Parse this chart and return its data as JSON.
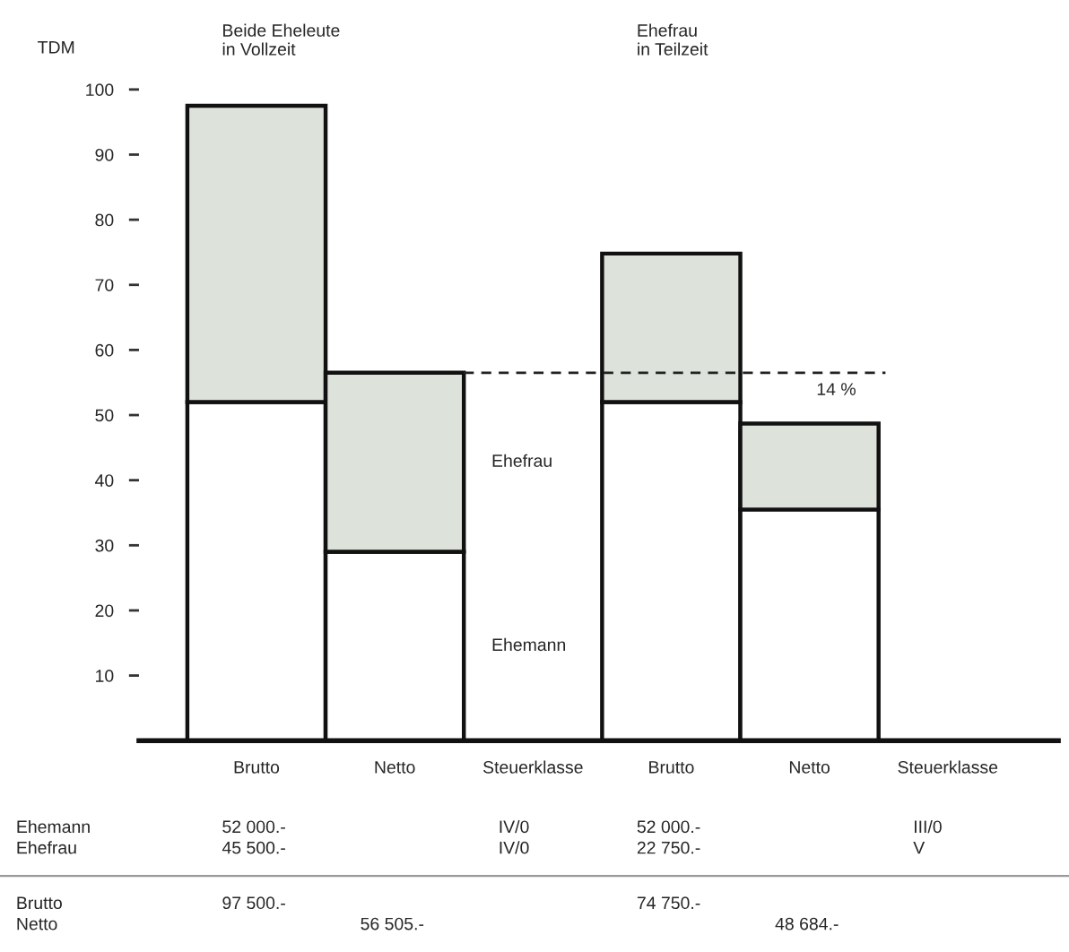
{
  "chart_data": {
    "type": "bar",
    "stacked": true,
    "categories": [
      "Brutto",
      "Netto",
      "Steuerklasse",
      "Brutto",
      "Netto",
      "Steuerklasse"
    ],
    "series": [
      {
        "name": "Ehemann",
        "color": "#ffffff",
        "values": [
          52,
          29,
          null,
          52,
          35.5,
          null
        ]
      },
      {
        "name": "Ehefrau",
        "color": "#dde2db",
        "values": [
          45.5,
          27.5,
          null,
          22.8,
          13.2,
          null
        ]
      }
    ],
    "ylabel": "TDM",
    "ylim": [
      0,
      100
    ],
    "yticks": [
      10,
      20,
      30,
      40,
      50,
      60,
      70,
      80,
      90,
      100
    ],
    "grid": false,
    "legend": false,
    "ref_lines": [
      {
        "axis": "y",
        "value": 56.5,
        "line_style": "dashed",
        "color": "#222222"
      }
    ],
    "annotations": [
      "Beide Eheleute\nin Vollzeit",
      "Ehefrau\nin Teilzeit",
      "14 %",
      "Ehemann",
      "52 000.-",
      "IV/0",
      "52 000.-",
      "III/0",
      "Ehefrau",
      "45 500.-",
      "IV/0",
      "22 750.-",
      "V",
      "Brutto",
      "97 500.-",
      "74 750.-",
      "Netto",
      "56 505.-",
      "48 684.-"
    ]
  }
}
